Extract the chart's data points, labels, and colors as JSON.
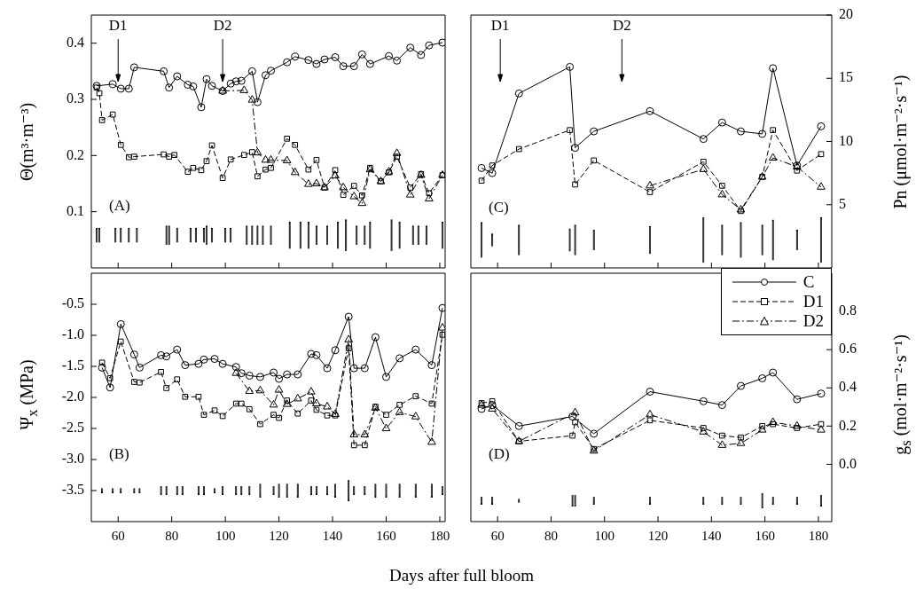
{
  "chart_data": [
    {
      "type": "line",
      "ylabel": "Θ(m³·m⁻³)",
      "xlim": [
        50,
        182
      ],
      "xticks": [
        60,
        80,
        100,
        120,
        140,
        160,
        180
      ],
      "ylim": [
        0,
        0.45
      ],
      "yticks": [
        0.1,
        0.2,
        0.3,
        0.4
      ],
      "tick_labels": "y",
      "annotations": [
        "(A)"
      ],
      "ref_lines": [
        {
          "axis": "x",
          "value": 60,
          "label": "D1"
        },
        {
          "axis": "x",
          "value": 99,
          "label": "D2"
        }
      ],
      "series": [
        {
          "color": "#000000",
          "marker": "circle",
          "line_style": "solid",
          "x": [
            52,
            58,
            61,
            64,
            66,
            77,
            79,
            82,
            86,
            88,
            91,
            93,
            95,
            99,
            102,
            104,
            106,
            110,
            112,
            115,
            117,
            123,
            126,
            131,
            134,
            137,
            141,
            144,
            148,
            151,
            154,
            161,
            164,
            169,
            173,
            176,
            181
          ],
          "values": [
            0.324,
            0.327,
            0.319,
            0.319,
            0.357,
            0.35,
            0.321,
            0.341,
            0.326,
            0.323,
            0.286,
            0.336,
            0.324,
            0.315,
            0.328,
            0.332,
            0.333,
            0.35,
            0.295,
            0.343,
            0.351,
            0.366,
            0.376,
            0.37,
            0.363,
            0.371,
            0.375,
            0.359,
            0.359,
            0.38,
            0.363,
            0.377,
            0.369,
            0.392,
            0.379,
            0.396,
            0.401
          ]
        },
        {
          "color": "#000000",
          "marker": "square",
          "line_style": "dashed",
          "x": [
            52,
            53,
            54,
            58,
            61,
            64,
            66,
            77,
            79,
            81,
            86,
            88,
            91,
            93,
            95,
            99,
            102,
            107,
            110,
            112,
            115,
            117,
            123,
            126,
            131,
            134,
            137,
            141,
            144,
            148,
            151,
            154,
            158,
            161,
            164,
            169,
            173,
            176,
            181
          ],
          "values": [
            0.321,
            0.311,
            0.263,
            0.273,
            0.219,
            0.197,
            0.198,
            0.202,
            0.198,
            0.201,
            0.171,
            0.178,
            0.174,
            0.19,
            0.218,
            0.16,
            0.193,
            0.201,
            0.206,
            0.163,
            0.175,
            0.178,
            0.23,
            0.219,
            0.175,
            0.192,
            0.143,
            0.174,
            0.13,
            0.146,
            0.129,
            0.178,
            0.154,
            0.17,
            0.198,
            0.143,
            0.167,
            0.133,
            0.165
          ]
        },
        {
          "color": "#000000",
          "marker": "triangle",
          "line_style": "dashdot",
          "x": [
            99,
            107,
            110,
            112,
            115,
            117,
            123,
            126,
            131,
            134,
            137,
            141,
            144,
            148,
            151,
            154,
            158,
            161,
            164,
            169,
            173,
            176,
            181
          ],
          "values": [
            0.315,
            0.316,
            0.299,
            0.205,
            0.192,
            0.192,
            0.191,
            0.17,
            0.149,
            0.15,
            0.143,
            0.164,
            0.143,
            0.127,
            0.115,
            0.175,
            0.154,
            0.171,
            0.204,
            0.13,
            0.165,
            0.123,
            0.165
          ]
        },
        {
          "type": "bar",
          "color": "#000000",
          "x": [
            52,
            53,
            59,
            61,
            64,
            67,
            78,
            79,
            82,
            87,
            89,
            92,
            93,
            95,
            100,
            102,
            108,
            110,
            112,
            114,
            117,
            124,
            128,
            131,
            134,
            138,
            142,
            145,
            149,
            152,
            154,
            162,
            165,
            170,
            172,
            175,
            181
          ],
          "base": [
            0.045,
            0.045,
            0.045,
            0.045,
            0.045,
            0.045,
            0.041,
            0.041,
            0.045,
            0.045,
            0.045,
            0.045,
            0.041,
            0.045,
            0.045,
            0.045,
            0.041,
            0.041,
            0.041,
            0.041,
            0.041,
            0.034,
            0.034,
            0.034,
            0.041,
            0.041,
            0.034,
            0.03,
            0.041,
            0.041,
            0.034,
            0.03,
            0.034,
            0.041,
            0.041,
            0.041,
            0.034
          ],
          "values": [
            0.026,
            0.026,
            0.026,
            0.026,
            0.026,
            0.026,
            0.034,
            0.034,
            0.026,
            0.026,
            0.026,
            0.026,
            0.034,
            0.026,
            0.026,
            0.026,
            0.034,
            0.034,
            0.034,
            0.034,
            0.034,
            0.048,
            0.048,
            0.048,
            0.034,
            0.034,
            0.048,
            0.056,
            0.034,
            0.034,
            0.048,
            0.056,
            0.048,
            0.034,
            0.034,
            0.034,
            0.048
          ]
        }
      ]
    },
    {
      "type": "line",
      "ylabel": "Ψ$_{x}$ (MPa)",
      "xlabel": "Days after full bloom",
      "xlim": [
        50,
        182
      ],
      "xticks": [
        60,
        80,
        100,
        120,
        140,
        160,
        180
      ],
      "ylim": [
        -4,
        0
      ],
      "yticks": [
        -3.5,
        {
          "value": -3,
          "label": "-3.0"
        },
        -2.5,
        {
          "value": -2,
          "label": "-2.0"
        },
        -1.5,
        {
          "value": -1,
          "label": "-1.0"
        },
        -0.5
      ],
      "annotations": [
        "(B)"
      ],
      "series": [
        {
          "color": "#000000",
          "marker": "circle",
          "line_style": "solid",
          "x": [
            54,
            57,
            61,
            66,
            68,
            76,
            78,
            82,
            85,
            90,
            92,
            96,
            99,
            104,
            106,
            109,
            113,
            118,
            120,
            123,
            127,
            132,
            134,
            138,
            141,
            146,
            148,
            152,
            156,
            160,
            165,
            171,
            177,
            181
          ],
          "values": [
            -1.52,
            -1.84,
            -0.82,
            -1.31,
            -1.52,
            -1.32,
            -1.34,
            -1.23,
            -1.48,
            -1.46,
            -1.39,
            -1.38,
            -1.46,
            -1.51,
            -1.61,
            -1.65,
            -1.67,
            -1.6,
            -1.7,
            -1.63,
            -1.63,
            -1.3,
            -1.32,
            -1.53,
            -1.24,
            -0.7,
            -1.53,
            -1.53,
            -1.03,
            -1.67,
            -1.37,
            -1.23,
            -1.48,
            -0.56
          ]
        },
        {
          "color": "#000000",
          "marker": "square",
          "line_style": "dashed",
          "x": [
            54,
            57,
            61,
            66,
            68,
            76,
            78,
            82,
            85,
            90,
            92,
            96,
            99,
            104,
            106,
            109,
            113,
            118,
            120,
            123,
            127,
            132,
            134,
            138,
            141,
            146,
            148,
            152,
            156,
            160,
            165,
            171,
            177,
            181
          ],
          "values": [
            -1.44,
            -1.69,
            -1.1,
            -1.75,
            -1.76,
            -1.59,
            -1.85,
            -1.71,
            -1.99,
            -1.99,
            -2.28,
            -2.21,
            -2.3,
            -2.1,
            -2.1,
            -2.19,
            -2.43,
            -2.28,
            -2.33,
            -2.05,
            -2.26,
            -2.05,
            -2.2,
            -2.29,
            -2.29,
            -1.21,
            -2.77,
            -2.77,
            -2.15,
            -2.28,
            -2.12,
            -1.98,
            -2.1,
            -0.99
          ]
        },
        {
          "color": "#000000",
          "marker": "triangle",
          "line_style": "dashdot",
          "x": [
            104,
            109,
            113,
            118,
            120,
            123,
            127,
            132,
            134,
            138,
            141,
            146,
            148,
            152,
            156,
            160,
            165,
            171,
            177,
            181
          ],
          "values": [
            -1.61,
            -1.9,
            -1.89,
            -2.12,
            -1.88,
            -2.11,
            -2.02,
            -1.91,
            -2.1,
            -2.15,
            -2.27,
            -1.07,
            -2.6,
            -2.6,
            -2.17,
            -2.5,
            -2.24,
            -2.31,
            -2.72,
            -0.88
          ]
        },
        {
          "type": "bar",
          "color": "#000000",
          "x": [
            54,
            58,
            61,
            66,
            68,
            76,
            78,
            82,
            84,
            90,
            92,
            96,
            99,
            104,
            106,
            109,
            113,
            118,
            120,
            123,
            127,
            132,
            134,
            138,
            141,
            146,
            148,
            152,
            156,
            160,
            165,
            171,
            177,
            181
          ],
          "base": [
            -3.54,
            -3.54,
            -3.54,
            -3.54,
            -3.54,
            -3.57,
            -3.57,
            -3.57,
            -3.57,
            -3.57,
            -3.57,
            -3.54,
            -3.57,
            -3.57,
            -3.57,
            -3.57,
            -3.61,
            -3.57,
            -3.61,
            -3.61,
            -3.61,
            -3.57,
            -3.57,
            -3.57,
            -3.61,
            -3.67,
            -3.57,
            -3.57,
            -3.61,
            -3.61,
            -3.61,
            -3.61,
            -3.61,
            -3.57
          ],
          "values": [
            0.08,
            0.08,
            0.08,
            0.08,
            0.08,
            0.14,
            0.14,
            0.14,
            0.14,
            0.14,
            0.14,
            0.08,
            0.14,
            0.14,
            0.14,
            0.14,
            0.22,
            0.14,
            0.22,
            0.22,
            0.22,
            0.14,
            0.14,
            0.14,
            0.22,
            0.34,
            0.14,
            0.14,
            0.22,
            0.22,
            0.22,
            0.22,
            0.22,
            0.14
          ]
        }
      ]
    },
    {
      "type": "line",
      "y2label": "Pn (μmol·m⁻²·s⁻¹)",
      "xlim": [
        50,
        185
      ],
      "xticks": [
        60,
        80,
        100,
        120,
        140,
        160,
        180
      ],
      "y2lim": [
        0,
        20
      ],
      "y2ticks": [
        5,
        10,
        15,
        20
      ],
      "tick_labels": "y",
      "annotations": [
        "(C)"
      ],
      "ref_lines": [
        {
          "axis": "x",
          "value": 61,
          "label": "D1"
        },
        {
          "axis": "x",
          "value": 106.5,
          "label": "D2"
        }
      ],
      "series": [
        {
          "color": "#000000",
          "marker": "circle",
          "line_style": "solid",
          "axis": "y2",
          "x": [
            54,
            58,
            68,
            87,
            89,
            96,
            117,
            137,
            144,
            151,
            159,
            163,
            172,
            181
          ],
          "values": [
            7.9,
            7.5,
            13.8,
            15.9,
            9.5,
            10.8,
            12.4,
            10.2,
            11.5,
            10.8,
            10.6,
            15.8,
            8.1,
            11.2
          ]
        },
        {
          "color": "#000000",
          "marker": "square",
          "line_style": "dashed",
          "axis": "y2",
          "x": [
            54,
            58,
            68,
            87,
            89,
            96,
            117,
            137,
            144,
            151,
            159,
            163,
            172,
            181
          ],
          "values": [
            6.9,
            8.1,
            9.4,
            10.9,
            6.6,
            8.5,
            6.0,
            8.4,
            6.5,
            4.5,
            7.2,
            10.9,
            7.7,
            9.0
          ]
        },
        {
          "color": "#000000",
          "marker": "triangle",
          "line_style": "dashdot",
          "axis": "y2",
          "x": [
            117,
            137,
            144,
            151,
            159,
            163,
            172,
            181
          ],
          "values": [
            6.5,
            7.8,
            5.8,
            4.6,
            7.2,
            8.7,
            8.0,
            6.4
          ]
        },
        {
          "type": "bar",
          "color": "#000000",
          "axis": "y2",
          "x": [
            54,
            58,
            68,
            87,
            89,
            96,
            117,
            137,
            144,
            151,
            159,
            163,
            172,
            181
          ],
          "base": [
            0.8,
            1.7,
            1.0,
            1.3,
            1.0,
            1.4,
            1.1,
            0.4,
            1.0,
            0.8,
            1.0,
            0.6,
            1.4,
            0.4
          ],
          "values": [
            2.8,
            1.0,
            2.4,
            1.8,
            2.4,
            1.6,
            2.2,
            3.6,
            2.4,
            2.8,
            2.4,
            3.2,
            1.6,
            3.6
          ]
        }
      ]
    },
    {
      "type": "line",
      "y2label": "g$_{s}$ (mol·m⁻²·s⁻¹)",
      "xlim": [
        50,
        185
      ],
      "xticks": [
        60,
        80,
        100,
        120,
        140,
        160,
        180
      ],
      "y2lim": [
        -0.3,
        1.0
      ],
      "y2ticks": [
        {
          "value": 0,
          "label": "0.0"
        },
        0.2,
        0.4,
        0.6,
        0.8
      ],
      "legend": "top right",
      "annotations": [
        "(D)"
      ],
      "series": [
        {
          "name": "C",
          "color": "#000000",
          "marker": "circle",
          "line_style": "solid",
          "axis": "y2",
          "x": [
            54,
            58,
            68,
            88,
            96,
            117,
            137,
            144,
            151,
            159,
            163,
            172,
            181
          ],
          "values": [
            0.29,
            0.31,
            0.2,
            0.25,
            0.16,
            0.38,
            0.33,
            0.31,
            0.41,
            0.45,
            0.48,
            0.34,
            0.37
          ]
        },
        {
          "name": "D1",
          "color": "#000000",
          "marker": "square",
          "line_style": "dashed",
          "axis": "y2",
          "x": [
            54,
            58,
            68,
            88,
            89,
            96,
            117,
            137,
            144,
            151,
            159,
            163,
            172,
            181
          ],
          "values": [
            0.32,
            0.33,
            0.12,
            0.15,
            0.22,
            0.08,
            0.23,
            0.19,
            0.15,
            0.14,
            0.2,
            0.21,
            0.19,
            0.21
          ]
        },
        {
          "name": "D2",
          "color": "#000000",
          "marker": "triangle",
          "line_style": "dashdot",
          "axis": "y2",
          "x": [
            54,
            58,
            68,
            89,
            96,
            117,
            137,
            144,
            151,
            159,
            163,
            172,
            181
          ],
          "values": [
            0.31,
            0.29,
            0.12,
            0.27,
            0.07,
            0.26,
            0.17,
            0.1,
            0.11,
            0.18,
            0.22,
            0.2,
            0.18
          ]
        },
        {
          "type": "bar",
          "color": "#000000",
          "axis": "y2",
          "x": [
            54,
            58,
            68,
            88,
            89,
            96,
            117,
            137,
            144,
            151,
            159,
            163,
            172,
            181
          ],
          "base": [
            -0.21,
            -0.21,
            -0.2,
            -0.22,
            -0.22,
            -0.21,
            -0.21,
            -0.21,
            -0.21,
            -0.21,
            -0.23,
            -0.21,
            -0.21,
            -0.22
          ],
          "values": [
            0.04,
            0.04,
            0.02,
            0.06,
            0.06,
            0.04,
            0.04,
            0.04,
            0.04,
            0.04,
            0.08,
            0.04,
            0.04,
            0.06
          ]
        }
      ]
    }
  ]
}
